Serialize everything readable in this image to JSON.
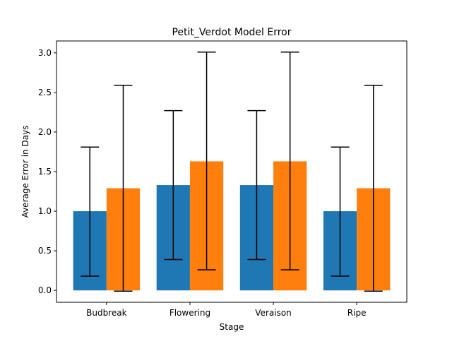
{
  "chart_data": {
    "type": "bar",
    "title": "Petit_Verdot Model Error",
    "xlabel": "Stage",
    "ylabel": "Average Error in Days",
    "categories": [
      "Budbreak",
      "Flowering",
      "Veraison",
      "Ripe"
    ],
    "ylim": [
      -0.15,
      3.15
    ],
    "yticks": [
      0.0,
      0.5,
      1.0,
      1.5,
      2.0,
      2.5,
      3.0
    ],
    "ytick_labels": [
      "0.0",
      "0.5",
      "1.0",
      "1.5",
      "2.0",
      "2.5",
      "3.0"
    ],
    "grid": false,
    "series": [
      {
        "color": "#1f77b4",
        "values": [
          1.0,
          1.33,
          1.33,
          1.0
        ],
        "error_low": [
          0.18,
          0.39,
          0.39,
          0.18
        ],
        "error_high": [
          1.81,
          2.27,
          2.27,
          1.81
        ]
      },
      {
        "color": "#ff7f0e",
        "values": [
          1.29,
          1.63,
          1.63,
          1.29
        ],
        "error_low": [
          -0.01,
          0.26,
          0.26,
          -0.01
        ],
        "error_high": [
          2.59,
          3.01,
          3.01,
          2.59
        ]
      }
    ]
  }
}
